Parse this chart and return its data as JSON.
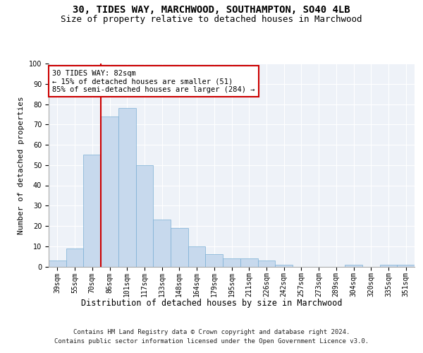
{
  "title1": "30, TIDES WAY, MARCHWOOD, SOUTHAMPTON, SO40 4LB",
  "title2": "Size of property relative to detached houses in Marchwood",
  "xlabel": "Distribution of detached houses by size in Marchwood",
  "ylabel": "Number of detached properties",
  "categories": [
    "39sqm",
    "55sqm",
    "70sqm",
    "86sqm",
    "101sqm",
    "117sqm",
    "133sqm",
    "148sqm",
    "164sqm",
    "179sqm",
    "195sqm",
    "211sqm",
    "226sqm",
    "242sqm",
    "257sqm",
    "273sqm",
    "289sqm",
    "304sqm",
    "320sqm",
    "335sqm",
    "351sqm"
  ],
  "values": [
    3,
    9,
    55,
    74,
    78,
    50,
    23,
    19,
    10,
    6,
    4,
    4,
    3,
    1,
    0,
    0,
    0,
    1,
    0,
    1,
    1
  ],
  "bar_color": "#c7d9ed",
  "bar_edge_color": "#7bafd4",
  "vline_color": "#cc0000",
  "annotation_text": "30 TIDES WAY: 82sqm\n← 15% of detached houses are smaller (51)\n85% of semi-detached houses are larger (284) →",
  "annotation_box_color": "#ffffff",
  "annotation_box_edge": "#cc0000",
  "ylim": [
    0,
    100
  ],
  "yticks": [
    0,
    10,
    20,
    30,
    40,
    50,
    60,
    70,
    80,
    90,
    100
  ],
  "background_color": "#eef2f8",
  "footer1": "Contains HM Land Registry data © Crown copyright and database right 2024.",
  "footer2": "Contains public sector information licensed under the Open Government Licence v3.0.",
  "title_fontsize": 10,
  "subtitle_fontsize": 9,
  "tick_fontsize": 7,
  "ylabel_fontsize": 8,
  "xlabel_fontsize": 8.5,
  "footer_fontsize": 6.5
}
